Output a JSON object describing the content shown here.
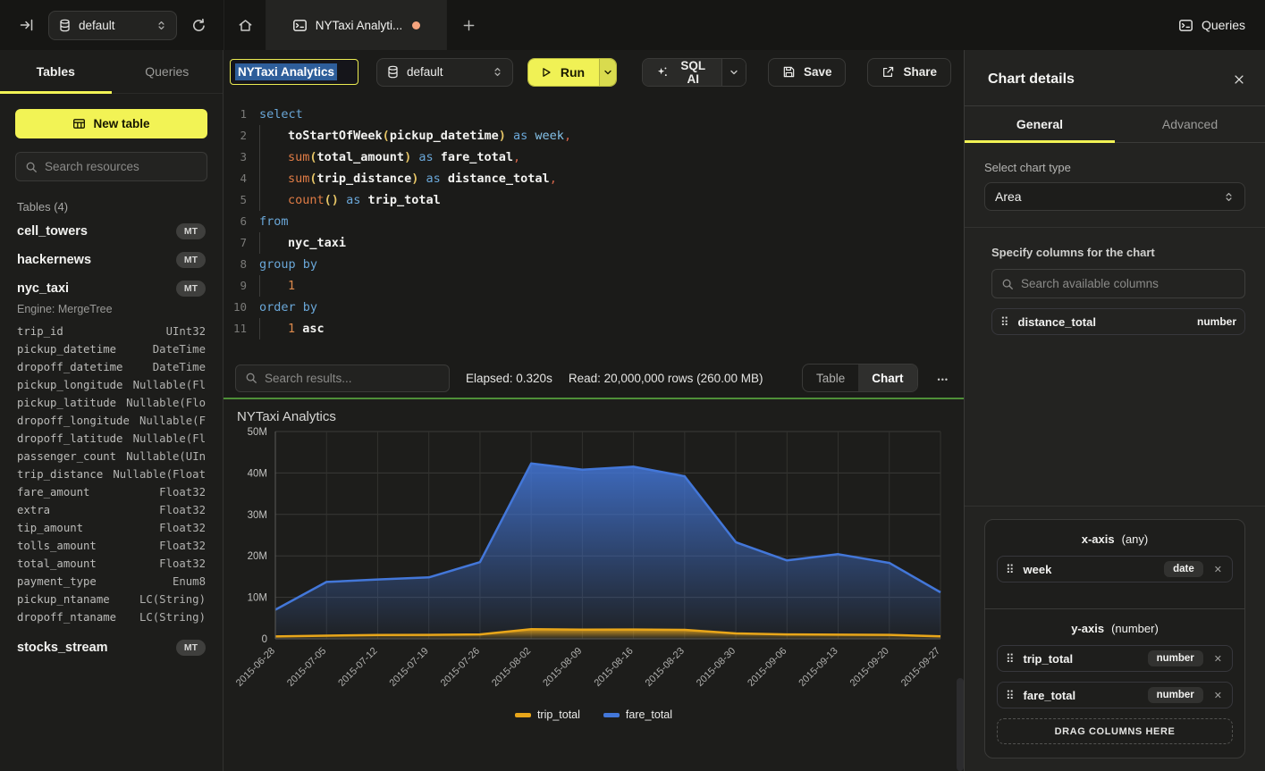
{
  "topbar": {
    "database": "default",
    "tab_title": "NYTaxi Analyti...",
    "queries_label": "Queries"
  },
  "sidebar": {
    "tab_tables": "Tables",
    "tab_queries": "Queries",
    "new_table_label": "New table",
    "search_placeholder": "Search resources",
    "section_title": "Tables (4)",
    "tables": [
      {
        "name": "cell_towers",
        "badge": "MT"
      },
      {
        "name": "hackernews",
        "badge": "MT"
      },
      {
        "name": "nyc_taxi",
        "badge": "MT",
        "engine": "Engine: MergeTree",
        "columns": [
          [
            "trip_id",
            "UInt32"
          ],
          [
            "pickup_datetime",
            "DateTime"
          ],
          [
            "dropoff_datetime",
            "DateTime"
          ],
          [
            "pickup_longitude",
            "Nullable(Fl"
          ],
          [
            "pickup_latitude",
            "Nullable(Flo"
          ],
          [
            "dropoff_longitude",
            "Nullable(F"
          ],
          [
            "dropoff_latitude",
            "Nullable(Fl"
          ],
          [
            "passenger_count",
            "Nullable(UIn"
          ],
          [
            "trip_distance",
            "Nullable(Float"
          ],
          [
            "fare_amount",
            "Float32"
          ],
          [
            "extra",
            "Float32"
          ],
          [
            "tip_amount",
            "Float32"
          ],
          [
            "tolls_amount",
            "Float32"
          ],
          [
            "total_amount",
            "Float32"
          ],
          [
            "payment_type",
            "Enum8"
          ],
          [
            "pickup_ntaname",
            "LC(String)"
          ],
          [
            "dropoff_ntaname",
            "LC(String)"
          ]
        ]
      },
      {
        "name": "stocks_stream",
        "badge": "MT"
      }
    ]
  },
  "toolbar": {
    "title_value": "NYTaxi Analytics",
    "database": "default",
    "run_label": "Run",
    "sql_ai_label": "SQL AI",
    "save_label": "Save",
    "share_label": "Share"
  },
  "editor": {
    "code_lines": [
      {
        "n": 1,
        "indent": false,
        "tokens": [
          [
            "select",
            "kw"
          ]
        ]
      },
      {
        "n": 2,
        "indent": true,
        "tokens": [
          [
            "toStartOfWeek",
            "fnw"
          ],
          [
            "(",
            "par"
          ],
          [
            "pickup_datetime",
            "id"
          ],
          [
            ")",
            "par"
          ],
          [
            " ",
            "sp"
          ],
          [
            "as",
            "kw"
          ],
          [
            " ",
            "sp"
          ],
          [
            "week",
            "al"
          ],
          [
            ",",
            "pu"
          ]
        ]
      },
      {
        "n": 3,
        "indent": true,
        "tokens": [
          [
            "sum",
            "fno"
          ],
          [
            "(",
            "par"
          ],
          [
            "total_amount",
            "id"
          ],
          [
            ")",
            "par"
          ],
          [
            " ",
            "sp"
          ],
          [
            "as",
            "kw"
          ],
          [
            " ",
            "sp"
          ],
          [
            "fare_total",
            "id"
          ],
          [
            ",",
            "pu"
          ]
        ]
      },
      {
        "n": 4,
        "indent": true,
        "tokens": [
          [
            "sum",
            "fno"
          ],
          [
            "(",
            "par"
          ],
          [
            "trip_distance",
            "id"
          ],
          [
            ")",
            "par"
          ],
          [
            " ",
            "sp"
          ],
          [
            "as",
            "kw"
          ],
          [
            " ",
            "sp"
          ],
          [
            "distance_total",
            "id"
          ],
          [
            ",",
            "pu"
          ]
        ]
      },
      {
        "n": 5,
        "indent": true,
        "tokens": [
          [
            "count",
            "fno"
          ],
          [
            "(",
            "par"
          ],
          [
            ")",
            "par"
          ],
          [
            " ",
            "sp"
          ],
          [
            "as",
            "kw"
          ],
          [
            " ",
            "sp"
          ],
          [
            "trip_total",
            "id"
          ]
        ]
      },
      {
        "n": 6,
        "indent": false,
        "tokens": [
          [
            "from",
            "kw"
          ]
        ]
      },
      {
        "n": 7,
        "indent": true,
        "tokens": [
          [
            "nyc_taxi",
            "id"
          ]
        ]
      },
      {
        "n": 8,
        "indent": false,
        "tokens": [
          [
            "group by",
            "kw"
          ]
        ]
      },
      {
        "n": 9,
        "indent": true,
        "tokens": [
          [
            "1",
            "num"
          ]
        ]
      },
      {
        "n": 10,
        "indent": false,
        "tokens": [
          [
            "order by",
            "kw"
          ]
        ]
      },
      {
        "n": 11,
        "indent": true,
        "tokens": [
          [
            "1",
            "num"
          ],
          [
            " ",
            "sp"
          ],
          [
            "asc",
            "id"
          ]
        ]
      }
    ]
  },
  "results": {
    "search_placeholder": "Search results...",
    "elapsed": "Elapsed: 0.320s",
    "read": "Read: 20,000,000 rows (260.00 MB)",
    "toggle_table": "Table",
    "toggle_chart": "Chart",
    "more_icon": "•••"
  },
  "chart_data": {
    "type": "area",
    "title": "NYTaxi Analytics",
    "x": [
      "2015-06-28",
      "2015-07-05",
      "2015-07-12",
      "2015-07-19",
      "2015-07-26",
      "2015-08-02",
      "2015-08-09",
      "2015-08-16",
      "2015-08-23",
      "2015-08-30",
      "2015-09-06",
      "2015-09-13",
      "2015-09-20",
      "2015-09-27"
    ],
    "series": [
      {
        "name": "fare_total",
        "color": "#4377d9",
        "values_millions": [
          7.0,
          13.7,
          14.3,
          14.8,
          18.5,
          42.3,
          40.8,
          41.5,
          39.2,
          23.3,
          18.9,
          20.4,
          18.3,
          11.2
        ]
      },
      {
        "name": "trip_total",
        "color": "#e8a61a",
        "values_millions": [
          0.55,
          0.75,
          0.9,
          0.95,
          1.05,
          2.3,
          2.2,
          2.25,
          2.15,
          1.3,
          1.05,
          1.0,
          0.95,
          0.6
        ]
      }
    ],
    "ylim": [
      0,
      50
    ],
    "yticks": [
      "0",
      "10M",
      "20M",
      "30M",
      "40M",
      "50M"
    ],
    "grid": true,
    "legend_position": "bottom",
    "legend_order": [
      "trip_total",
      "fare_total"
    ]
  },
  "panel": {
    "title": "Chart details",
    "tab_general": "General",
    "tab_advanced": "Advanced",
    "chart_type_label": "Select chart type",
    "chart_type_value": "Area",
    "columns_label": "Specify columns for the chart",
    "search_placeholder": "Search available columns",
    "available_columns": [
      {
        "name": "distance_total",
        "type": "number"
      }
    ],
    "x_axis": {
      "title": "x-axis",
      "subtitle": "(any)",
      "items": [
        {
          "name": "week",
          "type": "date"
        }
      ]
    },
    "y_axis": {
      "title": "y-axis",
      "subtitle": "(number)",
      "items": [
        {
          "name": "trip_total",
          "type": "number"
        },
        {
          "name": "fare_total",
          "type": "number"
        }
      ]
    },
    "drop_zone_label": "DRAG COLUMNS HERE"
  },
  "colors": {
    "accent_yellow": "#f2f355",
    "run_yellow": "#f0f155",
    "success_green": "#4e8f38",
    "tab_dot_orange": "#f5a47e",
    "selection_blue": "#2e5e9a",
    "series_fare": "#4377d9",
    "series_trip": "#e8a61a"
  }
}
